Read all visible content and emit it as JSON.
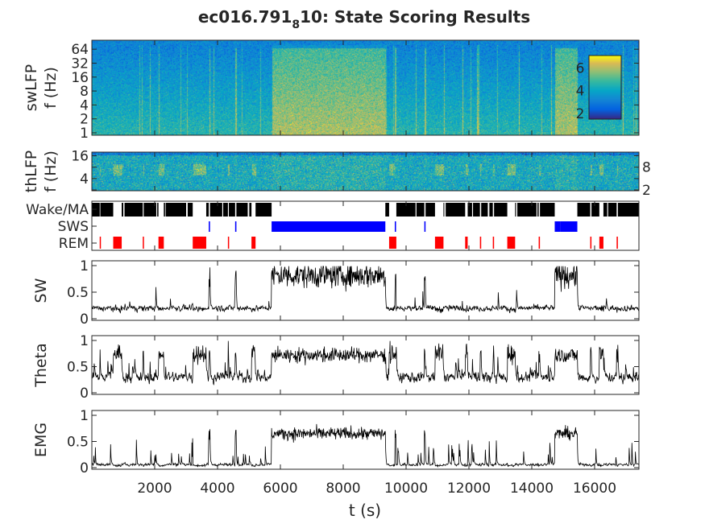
{
  "title": {
    "pre": "ec016.791",
    "sub": "8",
    "post": "10: State Scoring Results"
  },
  "chart_data": {
    "type": "line",
    "xlabel": "t (s)",
    "xlim": [
      0,
      17410
    ],
    "xticks": [
      "2000",
      "4000",
      "6000",
      "8000",
      "10000",
      "12000",
      "14000",
      "16000"
    ],
    "xtick_values": [
      2000,
      4000,
      6000,
      8000,
      10000,
      12000,
      14000,
      16000
    ],
    "colors": {
      "wake": "#000000",
      "sws": "#0000ff",
      "rem": "#ff0000",
      "line": "#000000"
    },
    "states": {
      "sws": [
        [
          5720,
          9340
        ],
        [
          14730,
          14900
        ],
        [
          14900,
          15450
        ],
        [
          3720,
          3760
        ],
        [
          4560,
          4600
        ],
        [
          9640,
          9680
        ],
        [
          10580,
          10620
        ],
        [
          15040,
          15080
        ]
      ],
      "rem": [
        [
          250,
          270
        ],
        [
          680,
          950
        ],
        [
          1620,
          1650
        ],
        [
          2120,
          2290
        ],
        [
          3210,
          3640
        ],
        [
          4330,
          4360
        ],
        [
          5080,
          5210
        ],
        [
          9460,
          9690
        ],
        [
          10920,
          11190
        ],
        [
          11880,
          11960
        ],
        [
          12350,
          12390
        ],
        [
          12760,
          12800
        ],
        [
          13220,
          13470
        ],
        [
          14220,
          14260
        ],
        [
          15860,
          15900
        ],
        [
          16150,
          16280
        ],
        [
          16700,
          16740
        ]
      ],
      "wake_gaps": [
        [
          700,
          720
        ],
        [
          1000,
          1040
        ],
        [
          2050,
          2080
        ],
        [
          2330,
          2350
        ],
        [
          3000,
          3050
        ],
        [
          3500,
          3530
        ],
        [
          4150,
          4180
        ],
        [
          4960,
          5010
        ],
        [
          10300,
          10330
        ],
        [
          11200,
          11260
        ],
        [
          12100,
          12130
        ],
        [
          12600,
          12650
        ],
        [
          13500,
          13540
        ],
        [
          14150,
          14180
        ],
        [
          16400,
          16430
        ]
      ]
    },
    "panels": [
      {
        "name": "swLFP",
        "ylabel": [
          "swLFP",
          "f (Hz)"
        ],
        "type": "heatmap",
        "yscale": "log2",
        "ylim": [
          1,
          100
        ],
        "yticks": [
          "1",
          "2",
          "4",
          "8",
          "16",
          "32",
          "64"
        ],
        "ytick_values": [
          1,
          2,
          4,
          8,
          16,
          32,
          64
        ],
        "colorbar": {
          "clim": [
            1.5,
            7.1
          ],
          "ticks": [
            "2",
            "4",
            "6"
          ],
          "tick_values": [
            2,
            4,
            6
          ]
        }
      },
      {
        "name": "thLFP",
        "ylabel": [
          "thLFP",
          "f (Hz)"
        ],
        "type": "heatmap",
        "yscale": "log2",
        "ylim": [
          2,
          20
        ],
        "yticks": [
          "2",
          "4",
          "8",
          "16"
        ],
        "ytick_values": [
          2,
          4,
          8,
          16
        ]
      },
      {
        "name": "States",
        "type": "states",
        "yticks": [
          "Wake/MA",
          "SWS",
          "REM"
        ]
      },
      {
        "name": "SW",
        "ylabel": [
          "SW"
        ],
        "type": "line",
        "ylim": [
          0,
          1
        ],
        "yticks": [
          "0",
          "0.5",
          "1"
        ],
        "ytick_values": [
          0,
          0.5,
          1
        ],
        "state_levels": {
          "wake": 0.2,
          "sws": 0.82,
          "rem": 0.18
        },
        "noise": {
          "wake": 0.04,
          "sws": 0.12,
          "rem": 0.03
        },
        "spike_rate": 0.02,
        "spike_height": 0.45
      },
      {
        "name": "Theta",
        "ylabel": [
          "Theta"
        ],
        "type": "line",
        "ylim": [
          0,
          1
        ],
        "yticks": [
          "0",
          "0.5",
          "1"
        ],
        "ytick_values": [
          0,
          0.5,
          1
        ],
        "state_levels": {
          "wake": 0.3,
          "sws": 0.72,
          "rem": 0.75
        },
        "noise": {
          "wake": 0.08,
          "sws": 0.07,
          "rem": 0.1
        },
        "spike_rate": 0.03,
        "spike_height": 0.3
      },
      {
        "name": "EMG",
        "ylabel": [
          "EMG"
        ],
        "type": "line",
        "ylim": [
          0,
          1
        ],
        "yticks": [
          "0",
          "0.5",
          "1"
        ],
        "ytick_values": [
          0,
          0.5,
          1
        ],
        "state_levels": {
          "wake": 0.06,
          "sws": 0.65,
          "rem": 0.04
        },
        "noise": {
          "wake": 0.02,
          "sws": 0.06,
          "rem": 0.01
        },
        "spike_rate": 0.05,
        "spike_height": 0.6
      }
    ]
  }
}
